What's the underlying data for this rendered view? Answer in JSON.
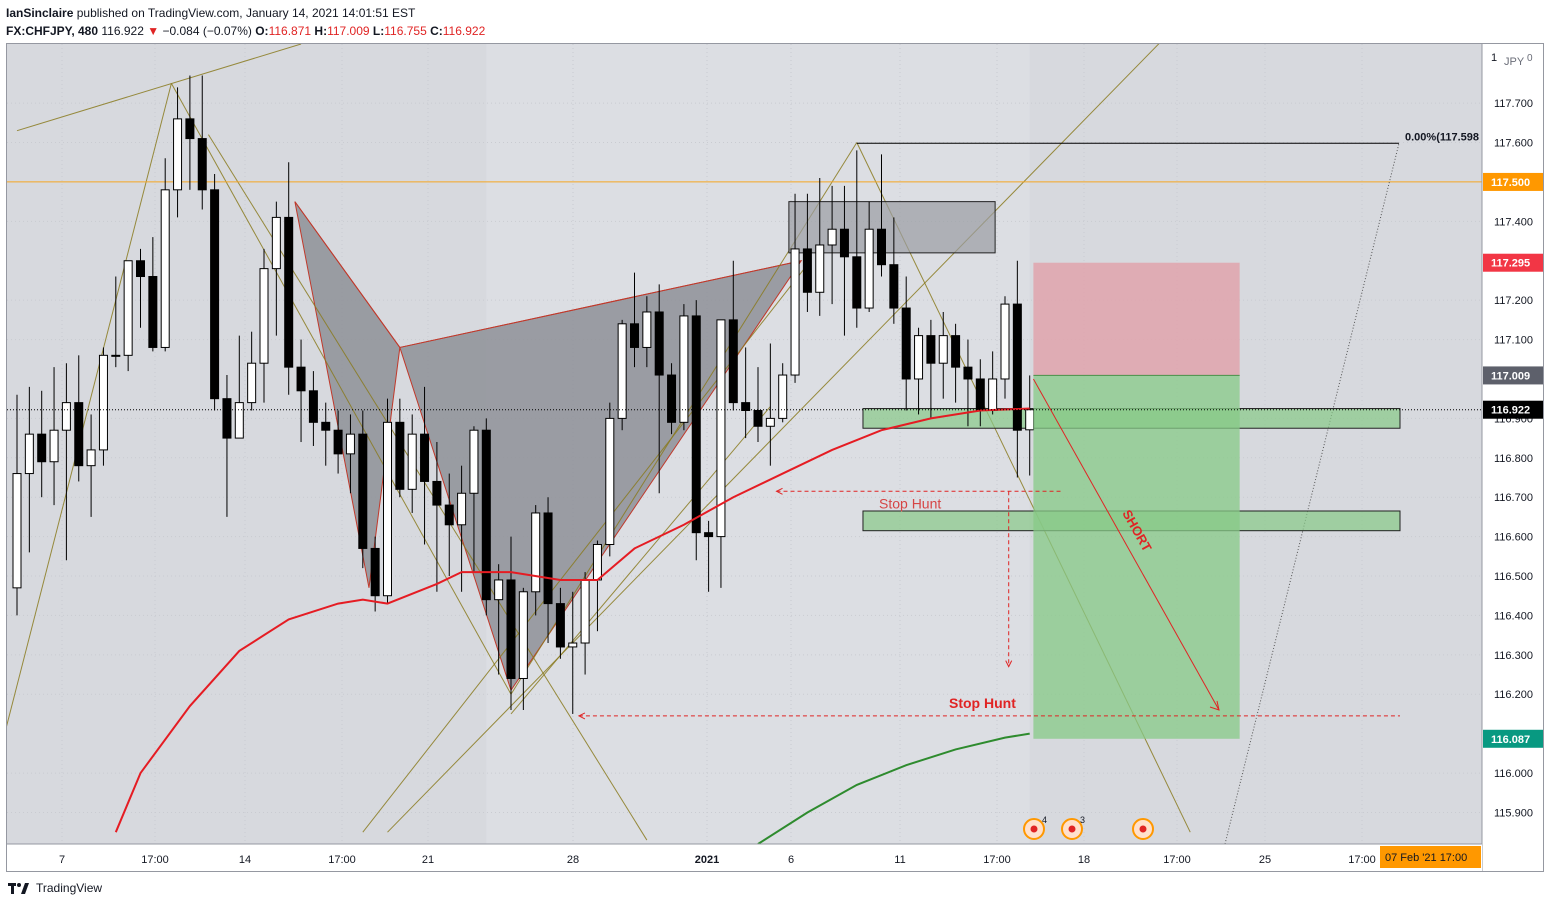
{
  "header": {
    "publisher": "IanSinclaire",
    "published_text": "published on TradingView.com, January 14, 2021 14:01:51 EST",
    "symbol": "FX:CHFJPY, 480",
    "last": "116.922",
    "change_arrow": "▼",
    "change": "−0.084 (−0.07%)",
    "o_label": "O:",
    "o": "116.871",
    "h_label": "H:",
    "h": "117.009",
    "l_label": "L:",
    "l": "116.755",
    "c_label": "C:",
    "c": "116.922"
  },
  "footer": {
    "brand": "TradingView",
    "logo_icon": "tradingview-logo-icon"
  },
  "colors": {
    "background": "#d7d9de",
    "bull_candle": "#ffffff",
    "bear_candle": "#000000",
    "ma_red": "#e51c23",
    "ma_green": "#2e8b2e",
    "resistance_line": "#f5a623",
    "target_zone": "#87c987",
    "stop_zone": "#e0a3ad",
    "pattern_fill": "#8e9098",
    "annotation_red": "#e02424",
    "price_label_red": "#f23645",
    "price_label_green": "#089981",
    "price_label_orange": "#ff9800"
  },
  "chart_data": {
    "type": "candlestick",
    "symbol": "FX:CHFJPY",
    "timeframe": "480",
    "currency": "JPY",
    "y_axis": {
      "min": 115.82,
      "max": 117.85,
      "ticks": [
        "117.700",
        "117.600",
        "117.400",
        "117.200",
        "117.100",
        "116.900",
        "116.800",
        "116.700",
        "116.600",
        "116.500",
        "116.400",
        "116.300",
        "116.200",
        "116.000",
        "115.900"
      ],
      "top_label_left": "1",
      "top_label_right": "JPY",
      "top_label_zero": "0"
    },
    "x_axis": {
      "ticks": [
        "7",
        "17:00",
        "14",
        "17:00",
        "21",
        "28",
        "2021",
        "6",
        "11",
        "17:00",
        "18",
        "17:00",
        "25",
        "17:00"
      ],
      "highlight_label": "07 Feb '21   17:00"
    },
    "price_labels": [
      {
        "value": 117.5,
        "text": "117.500",
        "color": "#ff9800"
      },
      {
        "value": 117.295,
        "text": "117.295",
        "color": "#f23645"
      },
      {
        "value": 117.009,
        "text": "117.009",
        "color": "#5d606b"
      },
      {
        "value": 116.922,
        "text": "116.922",
        "color": "#000000"
      },
      {
        "value": 116.087,
        "text": "116.087",
        "color": "#089981"
      }
    ],
    "fib_label": "0.00%(117.598",
    "annotations": {
      "stop_hunt_1": "Stop Hunt",
      "stop_hunt_2": "Stop Hunt",
      "short": "SHORT"
    },
    "events": [
      {
        "icon": "earnings-event-icon",
        "count": "4"
      },
      {
        "icon": "earnings-event-icon",
        "count": "3"
      },
      {
        "icon": "earnings-event-icon",
        "count": ""
      }
    ],
    "candles": [
      {
        "o": 116.47,
        "h": 116.96,
        "l": 116.4,
        "c": 116.76
      },
      {
        "o": 116.76,
        "h": 116.98,
        "l": 116.56,
        "c": 116.86
      },
      {
        "o": 116.86,
        "h": 116.97,
        "l": 116.7,
        "c": 116.79
      },
      {
        "o": 116.79,
        "h": 117.03,
        "l": 116.68,
        "c": 116.87
      },
      {
        "o": 116.87,
        "h": 117.04,
        "l": 116.54,
        "c": 116.94
      },
      {
        "o": 116.94,
        "h": 117.06,
        "l": 116.74,
        "c": 116.78
      },
      {
        "o": 116.78,
        "h": 116.91,
        "l": 116.65,
        "c": 116.82
      },
      {
        "o": 116.82,
        "h": 117.08,
        "l": 116.78,
        "c": 117.06
      },
      {
        "o": 117.06,
        "h": 117.26,
        "l": 117.03,
        "c": 117.06
      },
      {
        "o": 117.06,
        "h": 117.28,
        "l": 117.02,
        "c": 117.3
      },
      {
        "o": 117.3,
        "h": 117.33,
        "l": 117.13,
        "c": 117.26
      },
      {
        "o": 117.26,
        "h": 117.36,
        "l": 117.07,
        "c": 117.08
      },
      {
        "o": 117.08,
        "h": 117.56,
        "l": 117.07,
        "c": 117.48
      },
      {
        "o": 117.48,
        "h": 117.74,
        "l": 117.41,
        "c": 117.66
      },
      {
        "o": 117.66,
        "h": 117.77,
        "l": 117.48,
        "c": 117.61
      },
      {
        "o": 117.61,
        "h": 117.77,
        "l": 117.43,
        "c": 117.48
      },
      {
        "o": 117.48,
        "h": 117.52,
        "l": 116.92,
        "c": 116.95
      },
      {
        "o": 116.95,
        "h": 117.01,
        "l": 116.65,
        "c": 116.85
      },
      {
        "o": 116.85,
        "h": 117.11,
        "l": 116.85,
        "c": 116.94
      },
      {
        "o": 116.94,
        "h": 117.12,
        "l": 116.92,
        "c": 117.04
      },
      {
        "o": 117.04,
        "h": 117.33,
        "l": 116.94,
        "c": 117.28
      },
      {
        "o": 117.28,
        "h": 117.45,
        "l": 117.11,
        "c": 117.41
      },
      {
        "o": 117.41,
        "h": 117.55,
        "l": 116.96,
        "c": 117.03
      },
      {
        "o": 117.03,
        "h": 117.1,
        "l": 116.84,
        "c": 116.97
      },
      {
        "o": 116.97,
        "h": 117.02,
        "l": 116.83,
        "c": 116.89
      },
      {
        "o": 116.89,
        "h": 116.94,
        "l": 116.78,
        "c": 116.87
      },
      {
        "o": 116.87,
        "h": 116.92,
        "l": 116.76,
        "c": 116.81
      },
      {
        "o": 116.81,
        "h": 116.91,
        "l": 116.71,
        "c": 116.86
      },
      {
        "o": 116.86,
        "h": 116.92,
        "l": 116.52,
        "c": 116.57
      },
      {
        "o": 116.57,
        "h": 116.6,
        "l": 116.41,
        "c": 116.45
      },
      {
        "o": 116.45,
        "h": 116.95,
        "l": 116.43,
        "c": 116.89
      },
      {
        "o": 116.89,
        "h": 116.95,
        "l": 116.7,
        "c": 116.72
      },
      {
        "o": 116.72,
        "h": 116.91,
        "l": 116.66,
        "c": 116.86
      },
      {
        "o": 116.86,
        "h": 116.98,
        "l": 116.58,
        "c": 116.74
      },
      {
        "o": 116.74,
        "h": 116.84,
        "l": 116.46,
        "c": 116.68
      },
      {
        "o": 116.68,
        "h": 116.76,
        "l": 116.5,
        "c": 116.63
      },
      {
        "o": 116.63,
        "h": 116.78,
        "l": 116.46,
        "c": 116.71
      },
      {
        "o": 116.71,
        "h": 116.88,
        "l": 116.51,
        "c": 116.87
      },
      {
        "o": 116.87,
        "h": 116.9,
        "l": 116.4,
        "c": 116.44
      },
      {
        "o": 116.44,
        "h": 116.53,
        "l": 116.25,
        "c": 116.49
      },
      {
        "o": 116.49,
        "h": 116.6,
        "l": 116.16,
        "c": 116.24
      },
      {
        "o": 116.24,
        "h": 116.47,
        "l": 116.16,
        "c": 116.46
      },
      {
        "o": 116.46,
        "h": 116.68,
        "l": 116.4,
        "c": 116.66
      },
      {
        "o": 116.66,
        "h": 116.7,
        "l": 116.33,
        "c": 116.43
      },
      {
        "o": 116.43,
        "h": 116.47,
        "l": 116.29,
        "c": 116.32
      },
      {
        "o": 116.32,
        "h": 116.46,
        "l": 116.15,
        "c": 116.33
      },
      {
        "o": 116.33,
        "h": 116.51,
        "l": 116.25,
        "c": 116.49
      },
      {
        "o": 116.49,
        "h": 116.59,
        "l": 116.36,
        "c": 116.58
      },
      {
        "o": 116.58,
        "h": 116.94,
        "l": 116.55,
        "c": 116.9
      },
      {
        "o": 116.9,
        "h": 117.15,
        "l": 116.87,
        "c": 117.14
      },
      {
        "o": 117.14,
        "h": 117.27,
        "l": 117.03,
        "c": 117.08
      },
      {
        "o": 117.08,
        "h": 117.21,
        "l": 117.03,
        "c": 117.17
      },
      {
        "o": 117.17,
        "h": 117.24,
        "l": 116.71,
        "c": 117.01
      },
      {
        "o": 117.01,
        "h": 117.04,
        "l": 116.86,
        "c": 116.89
      },
      {
        "o": 116.89,
        "h": 117.19,
        "l": 116.87,
        "c": 117.16
      },
      {
        "o": 117.16,
        "h": 117.2,
        "l": 116.54,
        "c": 116.61
      },
      {
        "o": 116.61,
        "h": 116.64,
        "l": 116.46,
        "c": 116.6
      },
      {
        "o": 116.6,
        "h": 117.15,
        "l": 116.47,
        "c": 117.15
      },
      {
        "o": 117.15,
        "h": 117.3,
        "l": 116.92,
        "c": 116.94
      },
      {
        "o": 116.94,
        "h": 117.08,
        "l": 116.85,
        "c": 116.92
      },
      {
        "o": 116.92,
        "h": 117.03,
        "l": 116.84,
        "c": 116.88
      },
      {
        "o": 116.88,
        "h": 117.09,
        "l": 116.78,
        "c": 116.9
      },
      {
        "o": 116.9,
        "h": 117.04,
        "l": 116.89,
        "c": 117.01
      },
      {
        "o": 117.01,
        "h": 117.47,
        "l": 116.99,
        "c": 117.33
      },
      {
        "o": 117.33,
        "h": 117.47,
        "l": 117.17,
        "c": 117.22
      },
      {
        "o": 117.22,
        "h": 117.51,
        "l": 117.16,
        "c": 117.34
      },
      {
        "o": 117.34,
        "h": 117.49,
        "l": 117.19,
        "c": 117.38
      },
      {
        "o": 117.38,
        "h": 117.49,
        "l": 117.11,
        "c": 117.31
      },
      {
        "o": 117.31,
        "h": 117.58,
        "l": 117.13,
        "c": 117.18
      },
      {
        "o": 117.18,
        "h": 117.45,
        "l": 117.17,
        "c": 117.38
      },
      {
        "o": 117.38,
        "h": 117.57,
        "l": 117.26,
        "c": 117.29
      },
      {
        "o": 117.29,
        "h": 117.41,
        "l": 117.14,
        "c": 117.18
      },
      {
        "o": 117.18,
        "h": 117.26,
        "l": 116.92,
        "c": 117.0
      },
      {
        "o": 117.0,
        "h": 117.13,
        "l": 116.91,
        "c": 117.11
      },
      {
        "o": 117.11,
        "h": 117.15,
        "l": 116.9,
        "c": 117.04
      },
      {
        "o": 117.04,
        "h": 117.17,
        "l": 116.95,
        "c": 117.11
      },
      {
        "o": 117.11,
        "h": 117.14,
        "l": 116.94,
        "c": 117.03
      },
      {
        "o": 117.03,
        "h": 117.1,
        "l": 116.88,
        "c": 117.0
      },
      {
        "o": 117.0,
        "h": 117.05,
        "l": 116.88,
        "c": 116.92
      },
      {
        "o": 116.92,
        "h": 117.07,
        "l": 116.91,
        "c": 117.0
      },
      {
        "o": 117.0,
        "h": 117.21,
        "l": 116.95,
        "c": 117.19
      },
      {
        "o": 117.19,
        "h": 117.3,
        "l": 116.75,
        "c": 116.87
      },
      {
        "o": 116.871,
        "h": 117.009,
        "l": 116.755,
        "c": 116.922
      }
    ],
    "ma_red": [
      [
        8,
        115.85
      ],
      [
        10,
        116.0
      ],
      [
        14,
        116.17
      ],
      [
        18,
        116.31
      ],
      [
        22,
        116.39
      ],
      [
        26,
        116.43
      ],
      [
        28,
        116.44
      ],
      [
        30,
        116.43
      ],
      [
        34,
        116.48
      ],
      [
        36,
        116.51
      ],
      [
        40,
        116.51
      ],
      [
        44,
        116.49
      ],
      [
        47,
        116.49
      ],
      [
        50,
        116.57
      ],
      [
        54,
        116.63
      ],
      [
        58,
        116.7
      ],
      [
        62,
        116.76
      ],
      [
        66,
        116.82
      ],
      [
        70,
        116.87
      ],
      [
        74,
        116.9
      ],
      [
        78,
        116.92
      ],
      [
        82,
        116.925
      ]
    ],
    "ma_green": [
      [
        60,
        115.82
      ],
      [
        64,
        115.9
      ],
      [
        68,
        115.97
      ],
      [
        72,
        116.02
      ],
      [
        76,
        116.06
      ],
      [
        80,
        116.09
      ],
      [
        82,
        116.1
      ]
    ],
    "trade": {
      "entry": 117.009,
      "stop": 117.295,
      "target": 116.087
    },
    "zones": [
      {
        "price_top": 117.45,
        "price_bottom": 117.32
      },
      {
        "price_top": 116.925,
        "price_bottom": 116.875
      },
      {
        "price_top": 116.665,
        "price_bottom": 116.615
      }
    ],
    "resistance_price": 117.5,
    "fib_price": 117.598
  }
}
